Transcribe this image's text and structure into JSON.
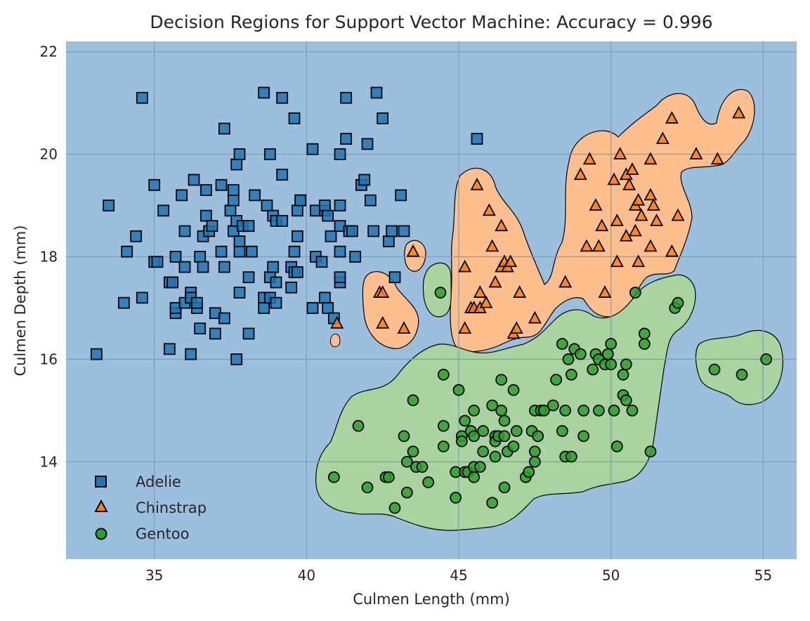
{
  "chart_data": {
    "type": "scatter",
    "title": "Decision Regions for Support Vector Machine: Accuracy = 0.996",
    "xlabel": "Culmen Length (mm)",
    "ylabel": "Culmen Depth (mm)",
    "xlim": [
      32.1,
      56.1
    ],
    "ylim": [
      12.1,
      22.2
    ],
    "xticks": [
      35,
      40,
      45,
      50,
      55
    ],
    "yticks": [
      14,
      16,
      18,
      20,
      22
    ],
    "grid": true,
    "legend_position": "lower-left",
    "background_region_color": "#9bbfdd",
    "series": [
      {
        "name": "Adelie",
        "marker": "square",
        "color": "#1f77b4",
        "points": [
          [
            33.1,
            16.1
          ],
          [
            33.5,
            19.0
          ],
          [
            34.0,
            17.1
          ],
          [
            34.1,
            18.1
          ],
          [
            34.4,
            18.4
          ],
          [
            34.6,
            21.1
          ],
          [
            34.6,
            17.2
          ],
          [
            35.0,
            17.9
          ],
          [
            35.0,
            19.4
          ],
          [
            35.1,
            17.9
          ],
          [
            35.3,
            18.9
          ],
          [
            35.5,
            17.5
          ],
          [
            35.5,
            16.2
          ],
          [
            35.6,
            17.5
          ],
          [
            35.7,
            16.9
          ],
          [
            35.7,
            17.0
          ],
          [
            35.7,
            18.0
          ],
          [
            35.9,
            19.2
          ],
          [
            36.0,
            18.5
          ],
          [
            36.0,
            17.8
          ],
          [
            36.0,
            17.1
          ],
          [
            36.2,
            17.3
          ],
          [
            36.2,
            16.1
          ],
          [
            36.2,
            17.2
          ],
          [
            36.3,
            19.5
          ],
          [
            36.4,
            17.0
          ],
          [
            36.4,
            17.1
          ],
          [
            36.5,
            18.0
          ],
          [
            36.5,
            16.6
          ],
          [
            36.6,
            17.8
          ],
          [
            36.6,
            18.4
          ],
          [
            36.7,
            19.3
          ],
          [
            36.7,
            18.8
          ],
          [
            36.8,
            18.5
          ],
          [
            36.9,
            18.6
          ],
          [
            37.0,
            16.9
          ],
          [
            37.0,
            16.5
          ],
          [
            37.2,
            18.1
          ],
          [
            37.2,
            19.4
          ],
          [
            37.3,
            20.5
          ],
          [
            37.3,
            17.8
          ],
          [
            37.3,
            16.8
          ],
          [
            37.5,
            18.9
          ],
          [
            37.6,
            18.5
          ],
          [
            37.6,
            19.1
          ],
          [
            37.6,
            19.3
          ],
          [
            37.7,
            19.8
          ],
          [
            37.7,
            18.7
          ],
          [
            37.7,
            16.0
          ],
          [
            37.8,
            20.0
          ],
          [
            37.8,
            18.1
          ],
          [
            37.8,
            18.3
          ],
          [
            37.8,
            17.3
          ],
          [
            37.9,
            18.6
          ],
          [
            38.1,
            18.6
          ],
          [
            38.1,
            17.6
          ],
          [
            38.1,
            16.5
          ],
          [
            38.2,
            18.1
          ],
          [
            38.3,
            19.2
          ],
          [
            38.6,
            21.2
          ],
          [
            38.6,
            17.2
          ],
          [
            38.6,
            17.0
          ],
          [
            38.7,
            19.0
          ],
          [
            38.8,
            20.0
          ],
          [
            38.8,
            17.6
          ],
          [
            38.8,
            17.2
          ],
          [
            38.9,
            17.8
          ],
          [
            38.9,
            18.8
          ],
          [
            39.0,
            18.7
          ],
          [
            39.0,
            17.5
          ],
          [
            39.0,
            17.1
          ],
          [
            39.2,
            21.1
          ],
          [
            39.2,
            19.6
          ],
          [
            39.2,
            18.7
          ],
          [
            39.5,
            17.4
          ],
          [
            39.5,
            17.8
          ],
          [
            39.6,
            20.7
          ],
          [
            39.6,
            18.1
          ],
          [
            39.6,
            17.7
          ],
          [
            39.7,
            17.7
          ],
          [
            39.7,
            18.9
          ],
          [
            39.7,
            18.4
          ],
          [
            39.8,
            19.1
          ],
          [
            39.8,
            19.1
          ],
          [
            40.2,
            20.1
          ],
          [
            40.2,
            17.0
          ],
          [
            40.3,
            18.9
          ],
          [
            40.3,
            18.0
          ],
          [
            40.5,
            17.9
          ],
          [
            40.6,
            18.9
          ],
          [
            40.6,
            17.2
          ],
          [
            40.6,
            19.0
          ],
          [
            40.7,
            18.8
          ],
          [
            40.7,
            17.0
          ],
          [
            40.8,
            18.4
          ],
          [
            40.9,
            16.8
          ],
          [
            41.1,
            20.0
          ],
          [
            41.1,
            18.1
          ],
          [
            41.1,
            18.6
          ],
          [
            41.1,
            17.5
          ],
          [
            41.1,
            17.6
          ],
          [
            41.1,
            19.0
          ],
          [
            41.3,
            21.1
          ],
          [
            41.3,
            20.3
          ],
          [
            41.4,
            18.5
          ],
          [
            41.5,
            18.5
          ],
          [
            41.6,
            18.0
          ],
          [
            41.8,
            19.4
          ],
          [
            41.9,
            19.5
          ],
          [
            42.0,
            20.2
          ],
          [
            42.1,
            19.1
          ],
          [
            42.2,
            18.5
          ],
          [
            42.3,
            21.2
          ],
          [
            42.5,
            20.7
          ],
          [
            42.7,
            18.3
          ],
          [
            42.8,
            18.5
          ],
          [
            42.9,
            17.6
          ],
          [
            43.1,
            19.2
          ],
          [
            43.2,
            18.5
          ],
          [
            45.6,
            20.3
          ]
        ]
      },
      {
        "name": "Chinstrap",
        "marker": "triangle",
        "color": "#ff7f0e",
        "points": [
          [
            41.0,
            16.7
          ],
          [
            42.4,
            17.3
          ],
          [
            42.5,
            17.3
          ],
          [
            42.5,
            16.7
          ],
          [
            43.2,
            16.6
          ],
          [
            43.5,
            18.1
          ],
          [
            45.2,
            17.8
          ],
          [
            45.2,
            16.6
          ],
          [
            45.4,
            17.0
          ],
          [
            45.5,
            17.0
          ],
          [
            45.6,
            19.4
          ],
          [
            45.7,
            17.3
          ],
          [
            45.7,
            17.0
          ],
          [
            45.9,
            17.1
          ],
          [
            46.0,
            18.9
          ],
          [
            46.1,
            18.2
          ],
          [
            46.2,
            17.5
          ],
          [
            46.4,
            18.6
          ],
          [
            46.4,
            17.8
          ],
          [
            46.5,
            17.9
          ],
          [
            46.6,
            17.8
          ],
          [
            46.7,
            17.9
          ],
          [
            46.8,
            16.5
          ],
          [
            46.9,
            16.6
          ],
          [
            47.0,
            17.3
          ],
          [
            47.5,
            16.8
          ],
          [
            48.5,
            17.5
          ],
          [
            49.0,
            19.6
          ],
          [
            49.2,
            18.2
          ],
          [
            49.3,
            19.9
          ],
          [
            49.5,
            19.0
          ],
          [
            49.6,
            18.2
          ],
          [
            49.7,
            18.6
          ],
          [
            49.8,
            17.3
          ],
          [
            50.1,
            19.5
          ],
          [
            50.2,
            18.7
          ],
          [
            50.3,
            20.0
          ],
          [
            50.5,
            19.6
          ],
          [
            50.5,
            18.4
          ],
          [
            50.6,
            19.4
          ],
          [
            50.7,
            19.7
          ],
          [
            50.8,
            18.5
          ],
          [
            50.8,
            19.0
          ],
          [
            50.9,
            19.1
          ],
          [
            50.9,
            17.9
          ],
          [
            51.0,
            18.8
          ],
          [
            51.3,
            19.9
          ],
          [
            51.3,
            19.2
          ],
          [
            51.3,
            18.2
          ],
          [
            51.4,
            19.0
          ],
          [
            51.5,
            18.7
          ],
          [
            51.7,
            20.3
          ],
          [
            52.0,
            20.7
          ],
          [
            52.0,
            18.1
          ],
          [
            52.2,
            18.8
          ],
          [
            52.8,
            20.0
          ],
          [
            53.5,
            19.9
          ],
          [
            54.2,
            20.8
          ],
          [
            50.2,
            17.9
          ]
        ]
      },
      {
        "name": "Gentoo",
        "marker": "circle",
        "color": "#2ca02c",
        "points": [
          [
            40.9,
            13.7
          ],
          [
            41.7,
            14.7
          ],
          [
            42.0,
            13.5
          ],
          [
            42.6,
            13.7
          ],
          [
            42.7,
            13.7
          ],
          [
            42.9,
            13.1
          ],
          [
            43.2,
            14.5
          ],
          [
            43.3,
            14.0
          ],
          [
            43.3,
            13.4
          ],
          [
            43.5,
            14.2
          ],
          [
            43.5,
            15.2
          ],
          [
            43.6,
            13.9
          ],
          [
            43.8,
            13.9
          ],
          [
            44.0,
            13.6
          ],
          [
            44.4,
            17.3
          ],
          [
            44.5,
            14.3
          ],
          [
            44.5,
            15.7
          ],
          [
            44.5,
            14.7
          ],
          [
            44.9,
            13.8
          ],
          [
            44.9,
            13.3
          ],
          [
            45.0,
            15.4
          ],
          [
            45.1,
            14.5
          ],
          [
            45.1,
            14.4
          ],
          [
            45.2,
            14.8
          ],
          [
            45.2,
            13.8
          ],
          [
            45.3,
            13.8
          ],
          [
            45.4,
            14.6
          ],
          [
            45.5,
            14.5
          ],
          [
            45.5,
            13.9
          ],
          [
            45.5,
            15.0
          ],
          [
            45.5,
            13.7
          ],
          [
            45.7,
            13.9
          ],
          [
            45.8,
            14.6
          ],
          [
            45.8,
            14.2
          ],
          [
            46.1,
            15.1
          ],
          [
            46.1,
            13.2
          ],
          [
            46.2,
            14.5
          ],
          [
            46.2,
            14.1
          ],
          [
            46.2,
            14.4
          ],
          [
            46.3,
            14.5
          ],
          [
            46.4,
            15.6
          ],
          [
            46.4,
            15.0
          ],
          [
            46.5,
            14.5
          ],
          [
            46.5,
            14.8
          ],
          [
            46.5,
            13.5
          ],
          [
            46.6,
            14.2
          ],
          [
            46.8,
            14.3
          ],
          [
            46.8,
            15.4
          ],
          [
            46.9,
            14.6
          ],
          [
            47.2,
            13.7
          ],
          [
            47.3,
            13.8
          ],
          [
            47.4,
            14.6
          ],
          [
            47.5,
            14.2
          ],
          [
            47.5,
            14.0
          ],
          [
            47.5,
            15.0
          ],
          [
            47.6,
            14.5
          ],
          [
            47.7,
            15.0
          ],
          [
            47.8,
            15.0
          ],
          [
            48.1,
            15.1
          ],
          [
            48.2,
            15.6
          ],
          [
            48.4,
            14.6
          ],
          [
            48.4,
            16.3
          ],
          [
            48.5,
            15.0
          ],
          [
            48.5,
            14.1
          ],
          [
            48.6,
            16.0
          ],
          [
            48.7,
            15.7
          ],
          [
            48.7,
            14.1
          ],
          [
            48.8,
            16.2
          ],
          [
            49.0,
            16.1
          ],
          [
            49.1,
            15.0
          ],
          [
            49.1,
            14.5
          ],
          [
            49.4,
            15.8
          ],
          [
            49.5,
            16.1
          ],
          [
            49.6,
            15.0
          ],
          [
            49.6,
            16.0
          ],
          [
            49.8,
            15.9
          ],
          [
            49.9,
            16.1
          ],
          [
            50.0,
            16.3
          ],
          [
            50.0,
            15.9
          ],
          [
            50.1,
            15.0
          ],
          [
            50.2,
            14.3
          ],
          [
            50.4,
            15.7
          ],
          [
            50.4,
            15.3
          ],
          [
            50.5,
            15.9
          ],
          [
            50.5,
            15.2
          ],
          [
            50.7,
            15.0
          ],
          [
            50.8,
            17.3
          ],
          [
            51.1,
            16.3
          ],
          [
            51.1,
            16.5
          ],
          [
            51.3,
            14.2
          ],
          [
            52.1,
            17.0
          ],
          [
            52.2,
            17.1
          ],
          [
            53.4,
            15.8
          ],
          [
            54.3,
            15.7
          ],
          [
            55.1,
            16.0
          ]
        ]
      }
    ]
  }
}
